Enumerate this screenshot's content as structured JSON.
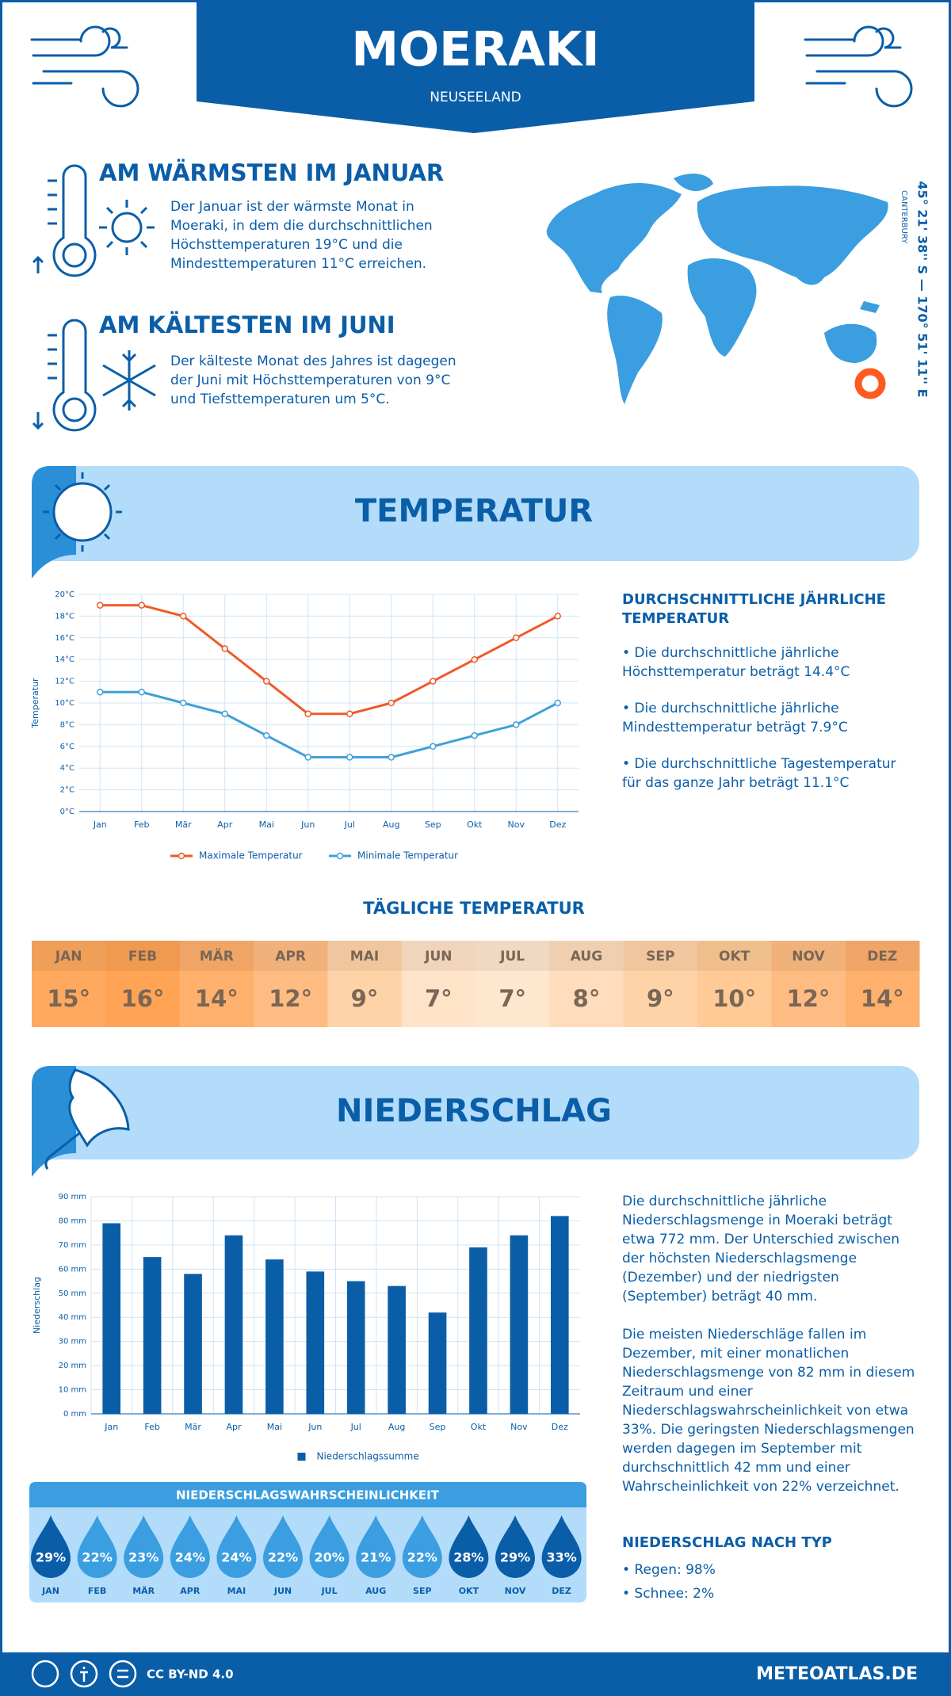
{
  "header": {
    "title": "MOERAKI",
    "subtitle": "NEUSEELAND"
  },
  "warmest": {
    "title": "AM WÄRMSTEN IM JANUAR",
    "text": "Der Januar ist der wärmste Monat in Moeraki, in dem die durchschnittlichen Höchsttemperaturen 19°C und die Mindesttemperaturen 11°C erreichen."
  },
  "coldest": {
    "title": "AM KÄLTESTEN IM JUNI",
    "text": "Der kälteste Monat des Jahres ist dagegen der Juni mit Höchsttemperaturen von 9°C und Tiefsttemperaturen um 5°C."
  },
  "location": {
    "coordinates": "45° 21' 38'' S — 170° 51' 11'' E",
    "region": "CANTERBURY"
  },
  "temperature": {
    "title": "TEMPERATUR",
    "summary_title": "DURCHSCHNITTLICHE JÄHRLICHE TEMPERATUR",
    "summary": [
      "• Die durchschnittliche jährliche Höchsttemperatur beträgt 14.4°C",
      "• Die durchschnittliche jährliche Mindesttemperatur beträgt 7.9°C",
      "• Die durchschnittliche Tagestemperatur für das ganze Jahr beträgt 11.1°C"
    ]
  },
  "daily": {
    "title": "TÄGLICHE TEMPERATUR",
    "months": [
      "JAN",
      "FEB",
      "MÄR",
      "APR",
      "MAI",
      "JUN",
      "JUL",
      "AUG",
      "SEP",
      "OKT",
      "NOV",
      "DEZ"
    ],
    "values": [
      "15°",
      "16°",
      "14°",
      "12°",
      "9°",
      "7°",
      "7°",
      "8°",
      "9°",
      "10°",
      "12°",
      "14°"
    ],
    "colors": [
      "#ffa95f",
      "#ffa454",
      "#ffb06c",
      "#ffbc82",
      "#ffd3a8",
      "#ffe3c8",
      "#ffe6ce",
      "#ffdcbb",
      "#ffd3a8",
      "#ffca96",
      "#ffbc82",
      "#ffb06c"
    ]
  },
  "precipitation": {
    "title": "NIEDERSCHLAG",
    "paragraphs": [
      "Die durchschnittliche jährliche Niederschlagsmenge in Moeraki beträgt etwa 772 mm. Der Unterschied zwischen der höchsten Niederschlagsmenge (Dezember) und der niedrigsten (September) beträgt 40 mm.",
      "Die meisten Niederschläge fallen im Dezember, mit einer monatlichen Niederschlagsmenge von 82 mm in diesem Zeitraum und einer Niederschlagswahrscheinlichkeit von etwa 33%. Die geringsten Niederschlagsmengen werden dagegen im September mit durchschnittlich 42 mm und einer Wahrscheinlichkeit von 22% verzeichnet."
    ],
    "type_title": "NIEDERSCHLAG NACH TYP",
    "types": [
      "• Regen: 98%",
      "• Schnee: 2%"
    ]
  },
  "probability": {
    "title": "NIEDERSCHLAGSWAHRSCHEINLICHKEIT",
    "months": [
      "JAN",
      "FEB",
      "MÄR",
      "APR",
      "MAI",
      "JUN",
      "JUL",
      "AUG",
      "SEP",
      "OKT",
      "NOV",
      "DEZ"
    ],
    "values": [
      "29%",
      "22%",
      "23%",
      "24%",
      "24%",
      "22%",
      "20%",
      "21%",
      "22%",
      "28%",
      "29%",
      "33%"
    ],
    "colors": [
      "#0a5ea8",
      "#3a9ee0",
      "#3a9ee0",
      "#3a9ee0",
      "#3a9ee0",
      "#3a9ee0",
      "#3a9ee0",
      "#3a9ee0",
      "#3a9ee0",
      "#0a5ea8",
      "#0a5ea8",
      "#0a5ea8"
    ]
  },
  "footer": {
    "license": "CC BY-ND 4.0",
    "site": "METEOATLAS.DE"
  },
  "chart_data": [
    {
      "type": "line",
      "ylabel": "Temperatur",
      "categories": [
        "Jan",
        "Feb",
        "Mär",
        "Apr",
        "Mai",
        "Jun",
        "Jul",
        "Aug",
        "Sep",
        "Okt",
        "Nov",
        "Dez"
      ],
      "series": [
        {
          "name": "Maximale Temperatur",
          "color": "#f05a28",
          "values": [
            19,
            19,
            18,
            15,
            12,
            9,
            9,
            10,
            12,
            14,
            16,
            18
          ]
        },
        {
          "name": "Minimale Temperatur",
          "color": "#3fa0d8",
          "values": [
            11,
            11,
            10,
            9,
            7,
            5,
            5,
            5,
            6,
            7,
            8,
            10
          ]
        }
      ],
      "ylim": [
        0,
        20
      ],
      "yticks": [
        {
          "value": 0,
          "label": "0°C"
        },
        {
          "value": 2,
          "label": "2°C"
        },
        {
          "value": 4,
          "label": "4°C"
        },
        {
          "value": 6,
          "label": "6°C"
        },
        {
          "value": 8,
          "label": "8°C"
        },
        {
          "value": 10,
          "label": "10°C"
        },
        {
          "value": 12,
          "label": "12°C"
        },
        {
          "value": 14,
          "label": "14°C"
        },
        {
          "value": 16,
          "label": "16°C"
        },
        {
          "value": 18,
          "label": "18°C"
        },
        {
          "value": 20,
          "label": "20°C"
        }
      ],
      "grid": true,
      "legend": "bottom"
    },
    {
      "type": "bar",
      "ylabel": "Niederschlag",
      "categories": [
        "Jan",
        "Feb",
        "Mär",
        "Apr",
        "Mai",
        "Jun",
        "Jul",
        "Aug",
        "Sep",
        "Okt",
        "Nov",
        "Dez"
      ],
      "series": [
        {
          "name": "Niederschlagssumme",
          "color": "#0a5ea8",
          "values": [
            79,
            65,
            58,
            74,
            64,
            59,
            55,
            53,
            42,
            69,
            74,
            82
          ]
        }
      ],
      "ylim": [
        0,
        90
      ],
      "yticks": [
        {
          "value": 0,
          "label": "0 mm"
        },
        {
          "value": 10,
          "label": "10 mm"
        },
        {
          "value": 20,
          "label": "20 mm"
        },
        {
          "value": 30,
          "label": "30 mm"
        },
        {
          "value": 40,
          "label": "40 mm"
        },
        {
          "value": 50,
          "label": "50 mm"
        },
        {
          "value": 60,
          "label": "60 mm"
        },
        {
          "value": 70,
          "label": "70 mm"
        },
        {
          "value": 80,
          "label": "80 mm"
        },
        {
          "value": 90,
          "label": "90 mm"
        }
      ],
      "grid": true,
      "legend": "bottom"
    }
  ]
}
